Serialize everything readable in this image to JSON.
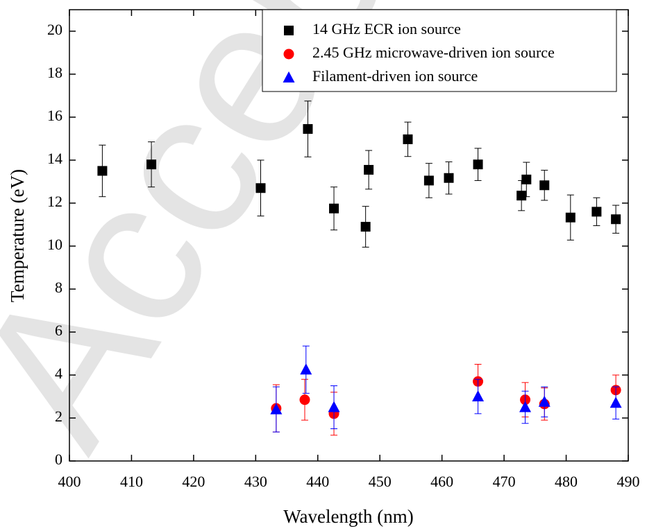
{
  "chart_data": {
    "type": "scatter",
    "xlabel": "Wavelength (nm)",
    "ylabel": "Temperature (eV)",
    "watermark": "Accepted Manuscript",
    "xlim": [
      400,
      490
    ],
    "xticks": [
      400,
      410,
      420,
      430,
      440,
      450,
      460,
      470,
      480,
      490
    ],
    "ylim": [
      0,
      21
    ],
    "yticks": [
      0,
      2,
      4,
      6,
      8,
      10,
      12,
      14,
      16,
      18,
      20
    ],
    "legend": "top-right",
    "series": [
      {
        "name": "14 GHz ECR ion source",
        "color": "#000000",
        "marker": "square",
        "x": [
          405.3,
          413.2,
          430.8,
          438.4,
          442.6,
          447.7,
          448.2,
          454.5,
          457.9,
          461.1,
          465.8,
          472.8,
          473.6,
          476.5,
          480.7,
          484.9,
          488.0
        ],
        "values": [
          13.5,
          13.8,
          12.7,
          15.45,
          11.75,
          10.9,
          13.55,
          14.97,
          13.05,
          13.17,
          13.8,
          12.35,
          13.1,
          12.83,
          11.33,
          11.6,
          11.25
        ],
        "errors": [
          1.2,
          1.05,
          1.3,
          1.3,
          1.0,
          0.95,
          0.9,
          0.8,
          0.8,
          0.75,
          0.75,
          0.7,
          0.8,
          0.7,
          1.05,
          0.65,
          0.65
        ]
      },
      {
        "name": "2.45 GHz microwave-driven ion source",
        "color": "#ff0000",
        "marker": "circle",
        "x": [
          433.3,
          437.9,
          442.6,
          465.8,
          473.4,
          476.5,
          488.0
        ],
        "values": [
          2.45,
          2.85,
          2.2,
          3.7,
          2.85,
          2.65,
          3.3
        ],
        "errors": [
          1.1,
          0.95,
          1.0,
          0.8,
          0.8,
          0.75,
          0.7
        ]
      },
      {
        "name": "Filament-driven ion source",
        "color": "#0000ff",
        "marker": "triangle",
        "x": [
          433.3,
          438.1,
          442.6,
          465.8,
          473.4,
          476.5,
          488.0
        ],
        "values": [
          2.4,
          4.25,
          2.5,
          3.0,
          2.5,
          2.75,
          2.7
        ],
        "errors": [
          1.05,
          1.1,
          1.0,
          0.8,
          0.75,
          0.7,
          0.75
        ]
      }
    ]
  }
}
